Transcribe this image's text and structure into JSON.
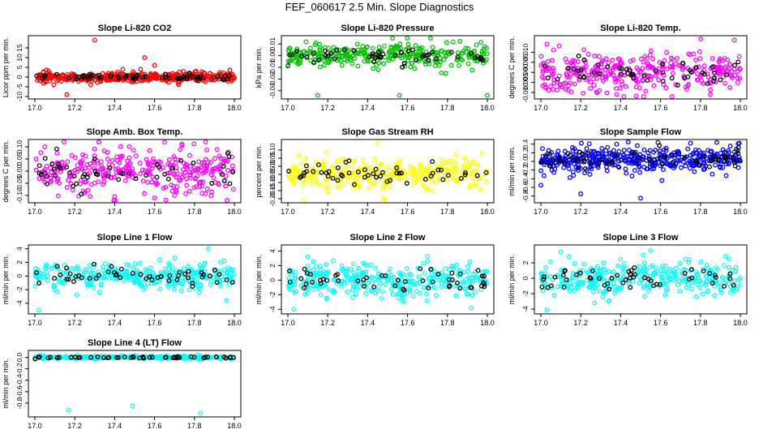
{
  "figure": {
    "title": "FEF_060617  2.5 Min. Slope Diagnostics"
  },
  "chart_data": [
    {
      "type": "scatter",
      "title": "Slope Li-820 CO2",
      "ylabel": "Licor ppm per min.",
      "color": "#ff0000",
      "xlim": [
        17.0,
        18.0
      ],
      "ylim": [
        -10,
        20
      ],
      "xticks": [
        "17.0",
        "17.2",
        "17.4",
        "17.6",
        "17.8",
        "18.0"
      ],
      "yticks": [
        -10,
        -5,
        0,
        5,
        10,
        15
      ],
      "ytick_labels": [
        "-10",
        "-5",
        "0",
        "5",
        "10",
        "15"
      ],
      "series": {
        "center": 0,
        "spread": 1.5,
        "outliers": [
          [
            17.3,
            19
          ],
          [
            17.16,
            -9
          ],
          [
            17.55,
            10
          ],
          [
            17.28,
            -4
          ],
          [
            17.6,
            6
          ]
        ]
      },
      "n_points": 420,
      "seed": 11
    },
    {
      "type": "scatter",
      "title": "Slope Li-820 Pressure",
      "ylabel": "kPa per min.",
      "color": "#00c000",
      "xlim": [
        17.0,
        18.0
      ],
      "ylim": [
        -0.035,
        0.015
      ],
      "xticks": [
        "17.0",
        "17.2",
        "17.4",
        "17.6",
        "17.8",
        "18.0"
      ],
      "yticks": [
        -0.03,
        -0.02,
        -0.01,
        0.0,
        0.01
      ],
      "ytick_labels": [
        "-0.03",
        "-0.02",
        "-0.01",
        "0.00",
        "0.01"
      ],
      "series": {
        "center": 0.0,
        "spread": 0.006,
        "outliers": [
          [
            17.15,
            -0.034
          ],
          [
            17.56,
            -0.034
          ],
          [
            18.0,
            -0.034
          ],
          [
            17.0,
            -0.009
          ]
        ]
      },
      "n_points": 320,
      "seed": 22
    },
    {
      "type": "scatter",
      "title": "Slope Li-820 Temp.",
      "ylabel": "degrees C per min.",
      "color": "#ff00ff",
      "xlim": [
        17.0,
        18.0
      ],
      "ylim": [
        -0.012,
        0.017
      ],
      "xticks": [
        "17.0",
        "17.2",
        "17.4",
        "17.6",
        "17.8",
        "18.0"
      ],
      "yticks": [
        -0.01,
        -0.005,
        0.0,
        0.005,
        0.01
      ],
      "ytick_labels": [
        "-0.010",
        "-0.005",
        "0.000",
        "0.005",
        "0.010"
      ],
      "series": {
        "center": 0.0,
        "spread": 0.006,
        "outliers": [
          [
            17.97,
            0.016
          ],
          [
            17.03,
            0.014
          ],
          [
            17.85,
            -0.011
          ]
        ]
      },
      "n_points": 320,
      "seed": 33
    },
    {
      "type": "scatter",
      "title": "Slope Amb. Box Temp.",
      "ylabel": "degrees C per min.",
      "color": "#ff00ff",
      "xlim": [
        17.0,
        18.0
      ],
      "ylim": [
        -0.12,
        0.12
      ],
      "xticks": [
        "17.0",
        "17.2",
        "17.4",
        "17.6",
        "17.8",
        "18.0"
      ],
      "yticks": [
        -0.1,
        -0.05,
        0.0,
        0.05,
        0.1
      ],
      "ytick_labels": [
        "-0.10",
        "-0.05",
        "0.00",
        "0.05",
        "0.10"
      ],
      "series": {
        "center": 0.0,
        "spread": 0.06,
        "outliers": [
          [
            17.6,
            -0.11
          ],
          [
            17.05,
            0.1
          ]
        ]
      },
      "n_points": 320,
      "seed": 44
    },
    {
      "type": "scatter",
      "title": "Slope Gas Stream RH",
      "ylabel": "percent per min.",
      "color": "#ffff00",
      "xlim": [
        17.0,
        18.0
      ],
      "ylim": [
        -0.21,
        0.15
      ],
      "xticks": [
        "17.0",
        "17.2",
        "17.4",
        "17.6",
        "17.8",
        "18.0"
      ],
      "yticks": [
        -0.2,
        -0.15,
        -0.1,
        -0.05,
        0.0,
        0.05,
        0.1
      ],
      "ytick_labels": [
        "-0.20",
        "-0.15",
        "-0.10",
        "-0.05",
        "0.00",
        "0.05",
        "0.10"
      ],
      "series": {
        "center": -0.04,
        "spread": 0.06,
        "outliers": [
          [
            17.45,
            0.14
          ],
          [
            17.48,
            -0.2
          ],
          [
            17.2,
            -0.16
          ]
        ]
      },
      "n_points": 320,
      "seed": 55
    },
    {
      "type": "scatter",
      "title": "Slope Sample Flow",
      "ylabel": "ml/min per min.",
      "color": "#0000ff",
      "xlim": [
        17.0,
        18.0
      ],
      "ylim": [
        -0.9,
        0.45
      ],
      "xticks": [
        "17.0",
        "17.2",
        "17.4",
        "17.6",
        "17.8",
        "18.0"
      ],
      "yticks": [
        -0.8,
        -0.6,
        -0.4,
        -0.2,
        0.0,
        0.2,
        0.4
      ],
      "ytick_labels": [
        "-0.8",
        "-0.6",
        "-0.4",
        "-0.2",
        "0.0",
        "0.2",
        "0.4"
      ],
      "series": {
        "center": 0.05,
        "spread": 0.18,
        "outliers": [
          [
            17.2,
            -0.75
          ],
          [
            17.5,
            -0.85
          ],
          [
            17.0,
            -0.55
          ],
          [
            17.75,
            0.42
          ],
          [
            17.38,
            0.4
          ]
        ]
      },
      "n_points": 420,
      "seed": 66
    },
    {
      "type": "scatter",
      "title": "Slope Line 1 Flow",
      "ylabel": "ml/min per min.",
      "color": "#00ffff",
      "xlim": [
        17.0,
        18.0
      ],
      "ylim": [
        -5.2,
        4.2
      ],
      "xticks": [
        "17.0",
        "17.2",
        "17.4",
        "17.6",
        "17.8",
        "18.0"
      ],
      "yticks": [
        -4,
        -2,
        0,
        2,
        4
      ],
      "ytick_labels": [
        "-4",
        "-2",
        "0",
        "2",
        "4"
      ],
      "series": {
        "center": 0.0,
        "spread": 1.2,
        "outliers": [
          [
            17.02,
            -5
          ],
          [
            17.87,
            4
          ],
          [
            17.96,
            -3.6
          ]
        ]
      },
      "n_points": 320,
      "seed": 77
    },
    {
      "type": "scatter",
      "title": "Slope Line 2 Flow",
      "ylabel": "ml/min per min.",
      "color": "#00ffff",
      "xlim": [
        17.0,
        18.0
      ],
      "ylim": [
        -4.3,
        4.5
      ],
      "xticks": [
        "17.0",
        "17.2",
        "17.4",
        "17.6",
        "17.8",
        "18.0"
      ],
      "yticks": [
        -4,
        -2,
        0,
        2,
        4
      ],
      "ytick_labels": [
        "-4",
        "-2",
        "0",
        "2",
        "4"
      ],
      "series": {
        "center": 0.0,
        "spread": 1.4,
        "outliers": [
          [
            17.03,
            -4
          ],
          [
            17.92,
            -3.8
          ],
          [
            17.1,
            3.2
          ],
          [
            17.7,
            3.3
          ]
        ]
      },
      "n_points": 320,
      "seed": 88
    },
    {
      "type": "scatter",
      "title": "Slope Line 3 Flow",
      "ylabel": "ml/min per min.",
      "color": "#00ffff",
      "xlim": [
        17.0,
        18.0
      ],
      "ylim": [
        -4.3,
        4.0
      ],
      "xticks": [
        "17.0",
        "17.2",
        "17.4",
        "17.6",
        "17.8",
        "18.0"
      ],
      "yticks": [
        -4,
        -2,
        0,
        2
      ],
      "ytick_labels": [
        "-4",
        "-2",
        "0",
        "2"
      ],
      "series": {
        "center": 0.0,
        "spread": 1.3,
        "outliers": [
          [
            17.03,
            -4.1
          ],
          [
            17.27,
            -3.2
          ],
          [
            17.1,
            3.4
          ],
          [
            17.55,
            3.6
          ]
        ]
      },
      "n_points": 320,
      "seed": 99
    },
    {
      "type": "scatter",
      "title": "Slope Line 4 (LT) Flow",
      "ylabel": "ml/min per min.",
      "color": "#00ffff",
      "xlim": [
        17.0,
        18.0
      ],
      "ylim": [
        -1.0,
        0.08
      ],
      "xticks": [
        "17.0",
        "17.2",
        "17.4",
        "17.6",
        "17.8",
        "18.0"
      ],
      "yticks": [
        -0.8,
        -0.6,
        -0.4,
        -0.2,
        0.0
      ],
      "ytick_labels": [
        "-0.8",
        "-0.6",
        "-0.4",
        "-0.2",
        "0.0"
      ],
      "series": {
        "center": 0.0,
        "spread": 0.015,
        "outliers": [
          [
            17.17,
            -0.92
          ],
          [
            17.49,
            -0.85
          ],
          [
            17.83,
            -0.98
          ]
        ]
      },
      "n_points": 320,
      "seed": 111
    }
  ]
}
